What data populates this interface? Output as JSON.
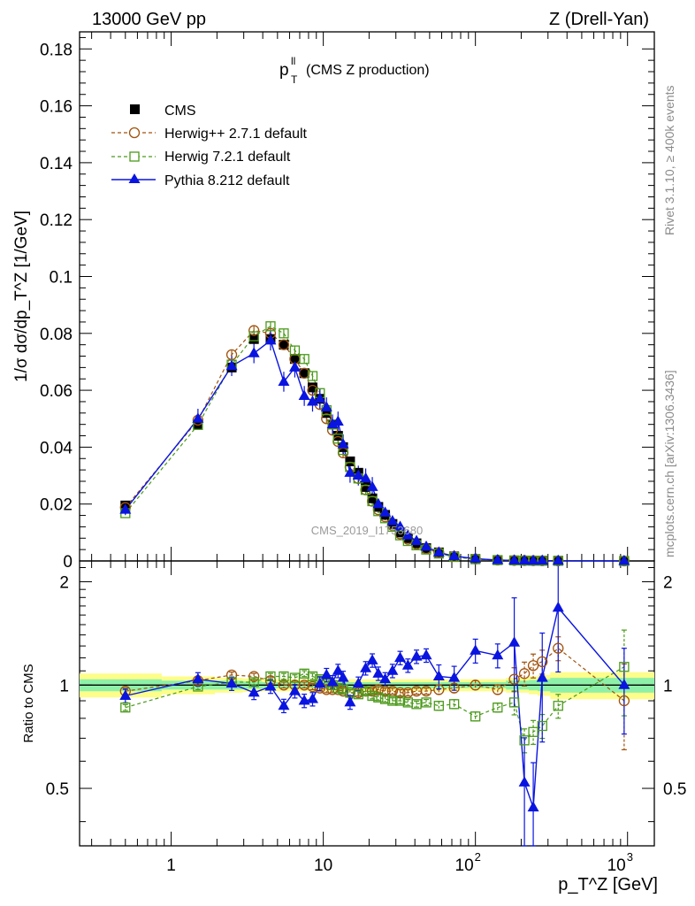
{
  "header": {
    "left": "13000 GeV pp",
    "right": "Z (Drell-Yan)"
  },
  "plot_title": {
    "main": "p",
    "sup": "ll",
    "sub": "T",
    "rest": "(CMS Z production)"
  },
  "side_labels": {
    "rivet": "Rivet 3.1.10, ≥ 400k events",
    "mcplots": "mcplots.cern.ch [arXiv:1306.3436]"
  },
  "watermark": "CMS_2019_I1753680",
  "colors": {
    "cms": "#000000",
    "herwigpp": "#a0520d",
    "herwig7": "#4b9a1a",
    "pythia": "#0a14e0",
    "band_outer": "#fdfd8a",
    "band_inner": "#8ef0a8"
  },
  "chart_data": [
    {
      "type": "scatter",
      "title": "p_T^ll (CMS Z production)",
      "xlabel": "p_T^Z [GeV]",
      "ylabel": "1/σ dσ/dp_T^Z [1/GeV]",
      "xscale": "log",
      "xlim": [
        0.25,
        1500
      ],
      "ylim": [
        0,
        0.186
      ],
      "yticks": [
        "0",
        "0.02",
        "0.04",
        "0.06",
        "0.08",
        "0.1",
        "0.12",
        "0.14",
        "0.16",
        "0.18"
      ],
      "legend_position": "top-left",
      "x": [
        0.5,
        1.5,
        2.5,
        3.5,
        4.5,
        5.5,
        6.5,
        7.5,
        8.5,
        9.5,
        10.5,
        11.5,
        12.5,
        13.5,
        15,
        17,
        19,
        21,
        23,
        25.5,
        28.5,
        32,
        36,
        41,
        47.5,
        57.5,
        72.5,
        100,
        140,
        180,
        210,
        240,
        275,
        350,
        950
      ],
      "series": [
        {
          "name": "CMS",
          "marker": "square-filled",
          "values": [
            0.0195,
            0.048,
            0.068,
            0.078,
            0.078,
            0.076,
            0.071,
            0.066,
            0.061,
            0.057,
            0.052,
            0.048,
            0.044,
            0.04,
            0.035,
            0.031,
            0.026,
            0.022,
            0.019,
            0.0162,
            0.013,
            0.01,
            0.008,
            0.0062,
            0.0045,
            0.003,
            0.0016,
            0.0007,
            0.0003,
            0.00018,
            0.00013,
            0.0001,
            8e-05,
            5e-05,
            5e-06
          ]
        },
        {
          "name": "Herwig++ 2.7.1 default",
          "marker": "circle-open",
          "style": "dashed",
          "values": [
            0.0188,
            0.0495,
            0.0725,
            0.081,
            0.08,
            0.076,
            0.071,
            0.066,
            0.06,
            0.055,
            0.05,
            0.046,
            0.042,
            0.038,
            0.033,
            0.029,
            0.025,
            0.021,
            0.018,
            0.0155,
            0.0125,
            0.0095,
            0.0076,
            0.0059,
            0.0043,
            0.0029,
            0.0016,
            0.0007,
            0.0003,
            0.00018,
            0.00013,
            0.0001,
            8e-05,
            5e-05,
            5e-06
          ]
        },
        {
          "name": "Herwig 7.2.1 default",
          "marker": "square-open",
          "style": "dashed",
          "values": [
            0.0168,
            0.0478,
            0.069,
            0.079,
            0.0825,
            0.08,
            0.074,
            0.071,
            0.065,
            0.059,
            0.053,
            0.048,
            0.043,
            0.039,
            0.033,
            0.029,
            0.025,
            0.021,
            0.0175,
            0.015,
            0.012,
            0.009,
            0.007,
            0.0055,
            0.004,
            0.0026,
            0.0014,
            0.0006,
            0.0003,
            0.00018,
            0.00013,
            0.0001,
            8e-05,
            5e-05,
            5e-06
          ]
        },
        {
          "name": "Pythia 8.212 default",
          "marker": "triangle-filled",
          "style": "solid",
          "values": [
            0.018,
            0.05,
            0.0685,
            0.073,
            0.0775,
            0.063,
            0.068,
            0.058,
            0.056,
            0.057,
            0.054,
            0.048,
            0.049,
            0.041,
            0.031,
            0.03,
            0.029,
            0.026,
            0.02,
            0.017,
            0.014,
            0.012,
            0.009,
            0.007,
            0.005,
            0.003,
            0.0017,
            0.0008,
            0.0003,
            0.0002,
            0.0001,
            8e-05,
            0.0001,
            7e-05,
            5e-06
          ]
        }
      ]
    },
    {
      "type": "scatter",
      "title": "",
      "xlabel": "p_T^Z [GeV]",
      "ylabel": "Ratio to CMS",
      "xscale": "log",
      "xlim": [
        0.25,
        1500
      ],
      "ylim": [
        0.34,
        2.3
      ],
      "yticks": [
        "0.5",
        "1",
        "2"
      ],
      "xticks": [
        "1",
        "10",
        "10^2",
        "10^3"
      ],
      "x": [
        0.5,
        1.5,
        2.5,
        3.5,
        4.5,
        5.5,
        6.5,
        7.5,
        8.5,
        9.5,
        10.5,
        11.5,
        12.5,
        13.5,
        15,
        17,
        19,
        21,
        23,
        25.5,
        28.5,
        32,
        36,
        41,
        47.5,
        57.5,
        72.5,
        100,
        140,
        180,
        210,
        240,
        275,
        350,
        950
      ],
      "band": {
        "inner_halfwidth": [
          0.04,
          0.03,
          0.03,
          0.025,
          0.02,
          0.02,
          0.02,
          0.02,
          0.02,
          0.02,
          0.02,
          0.02,
          0.02,
          0.02,
          0.02,
          0.02,
          0.02,
          0.02,
          0.02,
          0.02,
          0.02,
          0.02,
          0.02,
          0.02,
          0.02,
          0.02,
          0.02,
          0.02,
          0.02,
          0.03,
          0.03,
          0.035,
          0.04,
          0.05,
          0.05
        ],
        "outer_halfwidth": [
          0.08,
          0.06,
          0.05,
          0.045,
          0.04,
          0.04,
          0.04,
          0.04,
          0.04,
          0.04,
          0.04,
          0.04,
          0.04,
          0.04,
          0.04,
          0.04,
          0.04,
          0.04,
          0.04,
          0.04,
          0.04,
          0.04,
          0.04,
          0.04,
          0.04,
          0.04,
          0.04,
          0.04,
          0.04,
          0.05,
          0.05,
          0.06,
          0.07,
          0.09,
          0.09
        ]
      },
      "series": [
        {
          "name": "Herwig++ 2.7.1 default",
          "values": [
            0.96,
            1.03,
            1.07,
            1.06,
            1.03,
            1.0,
            1.0,
            1.0,
            0.99,
            0.98,
            0.97,
            0.97,
            0.97,
            0.96,
            0.95,
            0.95,
            0.96,
            0.96,
            0.97,
            0.96,
            0.96,
            0.95,
            0.95,
            0.96,
            0.96,
            0.97,
            0.98,
            1.0,
            0.97,
            1.04,
            1.08,
            1.14,
            1.17,
            1.28,
            0.9
          ]
        },
        {
          "name": "Herwig 7.2.1 default",
          "values": [
            0.86,
            0.99,
            1.02,
            1.02,
            1.06,
            1.06,
            1.05,
            1.08,
            1.06,
            1.04,
            1.02,
            1.0,
            0.98,
            0.97,
            0.95,
            0.94,
            0.96,
            0.93,
            0.92,
            0.91,
            0.9,
            0.9,
            0.89,
            0.88,
            0.89,
            0.87,
            0.88,
            0.81,
            0.86,
            0.89,
            0.69,
            0.73,
            0.76,
            0.87,
            1.13
          ]
        },
        {
          "name": "Pythia 8.212 default",
          "values": [
            0.93,
            1.04,
            1.01,
            0.95,
            0.99,
            0.87,
            0.96,
            0.9,
            0.91,
            1.01,
            1.07,
            1.02,
            1.1,
            1.05,
            0.89,
            1.01,
            1.12,
            1.18,
            1.08,
            1.04,
            1.1,
            1.2,
            1.14,
            1.21,
            1.22,
            1.06,
            1.05,
            1.26,
            1.22,
            1.33,
            0.52,
            0.44,
            1.05,
            1.68,
            1.0
          ]
        }
      ]
    }
  ]
}
